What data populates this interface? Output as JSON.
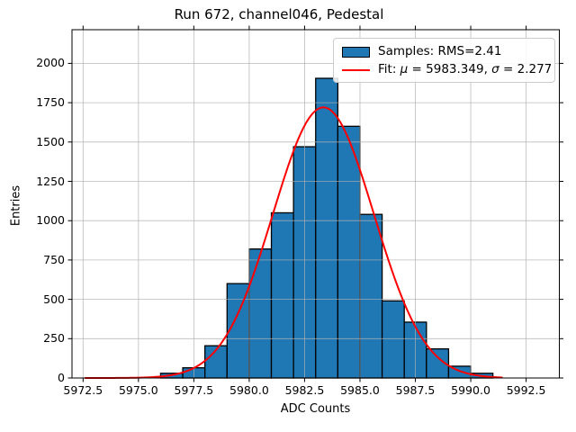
{
  "chart": {
    "title": "Run 672, channel046, Pedestal",
    "xlabel": "ADC Counts",
    "ylabel": "Entries",
    "legend": {
      "samples_label": "Samples: RMS=2.41",
      "fit_prefix": "Fit: ",
      "fit_mu_symbol": "μ",
      "fit_mu_value": " = 5983.349, ",
      "fit_sigma_symbol": "σ",
      "fit_sigma_value": " = 2.277"
    }
  },
  "chart_data": {
    "type": "bar",
    "subtype": "histogram",
    "title": "Run 672, channel046, Pedestal",
    "xlabel": "ADC Counts",
    "ylabel": "Entries",
    "grid": true,
    "grid_above_bars": true,
    "legend_position": "upper right",
    "bin_width": 1,
    "bin_left_edges": [
      5976,
      5977,
      5978,
      5979,
      5980,
      5981,
      5982,
      5983,
      5984,
      5985,
      5986,
      5987,
      5988,
      5989,
      5990
    ],
    "values": [
      30,
      65,
      205,
      600,
      820,
      1050,
      1470,
      1905,
      1600,
      1040,
      490,
      355,
      185,
      75,
      30
    ],
    "rms": 2.41,
    "fit": {
      "type": "gaussian",
      "mu": 5983.349,
      "sigma": 2.277,
      "amplitude": 1720,
      "x_range": [
        5972.6,
        5991.4
      ]
    },
    "xlim": [
      5972.0,
      5994.0
    ],
    "ylim": [
      0,
      2214
    ],
    "x_ticks": [
      5972.5,
      5975.0,
      5977.5,
      5980.0,
      5982.5,
      5985.0,
      5987.5,
      5990.0,
      5992.5
    ],
    "x_tick_labels": [
      "5972.5",
      "5975.0",
      "5977.5",
      "5980.0",
      "5982.5",
      "5985.0",
      "5987.5",
      "5990.0",
      "5992.5"
    ],
    "y_ticks": [
      0,
      250,
      500,
      750,
      1000,
      1250,
      1500,
      1750,
      2000
    ],
    "y_tick_labels": [
      "0",
      "250",
      "500",
      "750",
      "1000",
      "1250",
      "1500",
      "1750",
      "2000"
    ],
    "colors": {
      "bar_fill": "#1f77b4",
      "bar_edge": "#000000",
      "fit_line": "#ff0000",
      "grid": "#b0b0b0",
      "spine": "#000000",
      "background": "#ffffff"
    }
  }
}
